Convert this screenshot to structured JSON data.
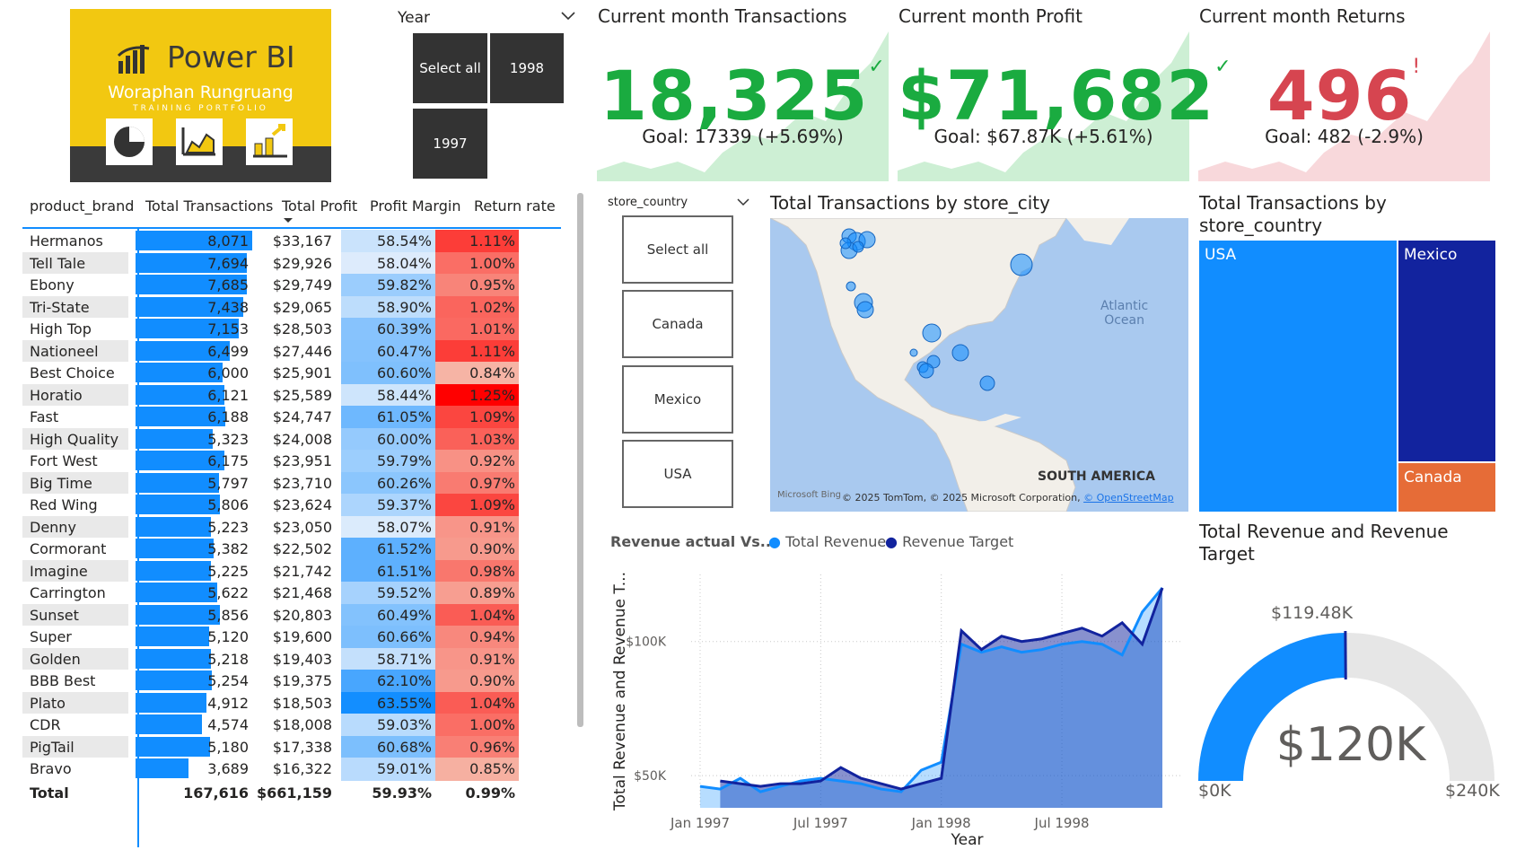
{
  "logo": {
    "product": "Power BI",
    "author": "Woraphan Rungruang",
    "subtitle": "TRAINING PORTFOLIO"
  },
  "year_slicer": {
    "label": "Year",
    "options": [
      "Select all",
      "1998",
      "1997"
    ]
  },
  "kpis": [
    {
      "title": "Current month Transactions",
      "value": "18,325",
      "status": "✓",
      "goal": "Goal: 17339 (+5.69%)",
      "color": "#1AAB40"
    },
    {
      "title": "Current month Profit",
      "value": "$71,682",
      "status": "✓",
      "goal": "Goal: $67.87K (+5.61%)",
      "color": "#1AAB40"
    },
    {
      "title": "Current month Returns",
      "value": "496",
      "status": "!",
      "goal": "Goal: 482 (-2.9%)",
      "color": "#D64550"
    }
  ],
  "table": {
    "headers": [
      "product_brand",
      "Total Transactions",
      "Total Profit",
      "Profit Margin",
      "Return rate"
    ],
    "rows": [
      {
        "brand": "Hermanos",
        "tx": "8,071",
        "profit": "$33,167",
        "margin": "58.54%",
        "ret": "1.11%"
      },
      {
        "brand": "Tell Tale",
        "tx": "7,694",
        "profit": "$29,926",
        "margin": "58.04%",
        "ret": "1.00%"
      },
      {
        "brand": "Ebony",
        "tx": "7,685",
        "profit": "$29,749",
        "margin": "59.82%",
        "ret": "0.95%"
      },
      {
        "brand": "Tri-State",
        "tx": "7,438",
        "profit": "$29,065",
        "margin": "58.90%",
        "ret": "1.02%"
      },
      {
        "brand": "High Top",
        "tx": "7,153",
        "profit": "$28,503",
        "margin": "60.39%",
        "ret": "1.01%"
      },
      {
        "brand": "Nationeel",
        "tx": "6,499",
        "profit": "$27,446",
        "margin": "60.47%",
        "ret": "1.11%"
      },
      {
        "brand": "Best Choice",
        "tx": "6,000",
        "profit": "$25,901",
        "margin": "60.60%",
        "ret": "0.84%"
      },
      {
        "brand": "Horatio",
        "tx": "6,121",
        "profit": "$25,589",
        "margin": "58.44%",
        "ret": "1.25%"
      },
      {
        "brand": "Fast",
        "tx": "6,188",
        "profit": "$24,747",
        "margin": "61.05%",
        "ret": "1.09%"
      },
      {
        "brand": "High Quality",
        "tx": "5,323",
        "profit": "$24,008",
        "margin": "60.00%",
        "ret": "1.03%"
      },
      {
        "brand": "Fort West",
        "tx": "6,175",
        "profit": "$23,951",
        "margin": "59.79%",
        "ret": "0.92%"
      },
      {
        "brand": "Big Time",
        "tx": "5,797",
        "profit": "$23,710",
        "margin": "60.26%",
        "ret": "0.97%"
      },
      {
        "brand": "Red Wing",
        "tx": "5,806",
        "profit": "$23,624",
        "margin": "59.37%",
        "ret": "1.09%"
      },
      {
        "brand": "Denny",
        "tx": "5,223",
        "profit": "$23,050",
        "margin": "58.07%",
        "ret": "0.91%"
      },
      {
        "brand": "Cormorant",
        "tx": "5,382",
        "profit": "$22,502",
        "margin": "61.52%",
        "ret": "0.90%"
      },
      {
        "brand": "Imagine",
        "tx": "5,225",
        "profit": "$21,742",
        "margin": "61.51%",
        "ret": "0.98%"
      },
      {
        "brand": "Carrington",
        "tx": "5,622",
        "profit": "$21,468",
        "margin": "59.52%",
        "ret": "0.89%"
      },
      {
        "brand": "Sunset",
        "tx": "5,856",
        "profit": "$20,803",
        "margin": "60.49%",
        "ret": "1.04%"
      },
      {
        "brand": "Super",
        "tx": "5,120",
        "profit": "$19,600",
        "margin": "60.66%",
        "ret": "0.94%"
      },
      {
        "brand": "Golden",
        "tx": "5,218",
        "profit": "$19,403",
        "margin": "58.71%",
        "ret": "0.91%"
      },
      {
        "brand": "BBB Best",
        "tx": "5,254",
        "profit": "$19,375",
        "margin": "62.10%",
        "ret": "0.90%"
      },
      {
        "brand": "Plato",
        "tx": "4,912",
        "profit": "$18,503",
        "margin": "63.55%",
        "ret": "1.04%"
      },
      {
        "brand": "CDR",
        "tx": "4,574",
        "profit": "$18,008",
        "margin": "59.03%",
        "ret": "1.00%"
      },
      {
        "brand": "PigTail",
        "tx": "5,180",
        "profit": "$17,338",
        "margin": "60.68%",
        "ret": "0.96%"
      },
      {
        "brand": "Bravo",
        "tx": "3,689",
        "profit": "$16,322",
        "margin": "59.01%",
        "ret": "0.85%"
      }
    ],
    "total": {
      "brand": "Total",
      "tx": "167,616",
      "profit": "$661,159",
      "margin": "59.93%",
      "ret": "0.99%"
    }
  },
  "country_slicer": {
    "label": "store_country",
    "options": [
      "Select all",
      "Canada",
      "Mexico",
      "USA"
    ]
  },
  "map": {
    "title": "Total Transactions by store_city",
    "ocean_label": "Atlantic\nOcean",
    "continent_label": "SOUTH AMERICA",
    "attribution": "© 2025 TomTom, © 2025 Microsoft Corporation,",
    "attribution_link": "© OpenStreetMap",
    "bing": "Microsoft Bing"
  },
  "treemap": {
    "title": "Total Transactions by store_country",
    "items": [
      {
        "name": "USA",
        "color": "#118DFF"
      },
      {
        "name": "Mexico",
        "color": "#12239E"
      },
      {
        "name": "Canada",
        "color": "#E66C37"
      }
    ]
  },
  "line_chart": {
    "title": "Revenue actual Vs...",
    "legend": [
      {
        "name": "Total Revenue",
        "color": "#118DFF"
      },
      {
        "name": "Revenue Target",
        "color": "#12239E"
      }
    ],
    "ylabel": "Total Revenue and Revenue T...",
    "xlabel": "Year",
    "xticks": [
      "Jan 1997",
      "Jul 1997",
      "Jan 1998",
      "Jul 1998"
    ],
    "yticks": [
      "$50K",
      "$100K"
    ]
  },
  "gauge": {
    "title": "Total Revenue and Revenue Target",
    "value_label": "$120K",
    "min_label": "$0K",
    "max_label": "$240K",
    "target_label": "$119.48K"
  },
  "chart_data": [
    {
      "type": "line",
      "title": "Revenue actual Vs...",
      "x": [
        "Jan 1997",
        "Feb 1997",
        "Mar 1997",
        "Apr 1997",
        "May 1997",
        "Jun 1997",
        "Jul 1997",
        "Aug 1997",
        "Sep 1997",
        "Oct 1997",
        "Nov 1997",
        "Dec 1997",
        "Jan 1998",
        "Feb 1998",
        "Mar 1998",
        "Apr 1998",
        "May 1998",
        "Jun 1998",
        "Jul 1998",
        "Aug 1998",
        "Sep 1998",
        "Oct 1998",
        "Nov 1998",
        "Dec 1998"
      ],
      "series": [
        {
          "name": "Total Revenue",
          "values": [
            46,
            45,
            49,
            44,
            46,
            48,
            49,
            48,
            47,
            45,
            44,
            52,
            55,
            99,
            96,
            98,
            96,
            97,
            99,
            100,
            99,
            95,
            111,
            120
          ]
        },
        {
          "name": "Revenue Target",
          "values": [
            null,
            48,
            47,
            46,
            47,
            47,
            48,
            53,
            49,
            47,
            45,
            47,
            49,
            104,
            97,
            102,
            100,
            101,
            103,
            105,
            102,
            107,
            99,
            120
          ]
        }
      ],
      "xlabel": "Year",
      "ylabel": "Total Revenue and Revenue T...",
      "yunit": "$K",
      "ylim": [
        38,
        125
      ]
    },
    {
      "type": "gauge",
      "title": "Total Revenue and Revenue Target",
      "value": 120,
      "min": 0,
      "max": 240,
      "target": 119.48,
      "unit": "$K"
    },
    {
      "type": "table",
      "title": "product_brand",
      "series": [
        {
          "name": "Total Transactions",
          "values": [
            8071,
            7694,
            7685,
            7438,
            7153,
            6499,
            6000,
            6121,
            6188,
            5323,
            6175,
            5797,
            5806,
            5223,
            5382,
            5225,
            5622,
            5856,
            5120,
            5218,
            5254,
            4912,
            4574,
            5180,
            3689
          ]
        }
      ]
    }
  ]
}
